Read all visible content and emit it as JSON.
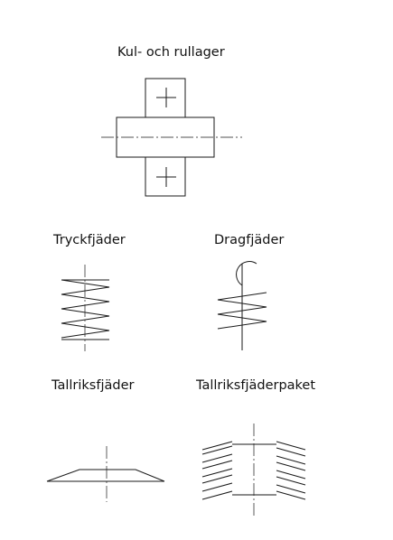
{
  "symbols": {
    "bearing": {
      "label": "Kul- och rullager"
    },
    "compression_spring": {
      "label": "Tryckfjäder"
    },
    "tension_spring": {
      "label": "Dragfjäder"
    },
    "disc_spring": {
      "label": "Tallriksfjäder"
    },
    "disc_spring_pack": {
      "label": "Tallriksfjäderpaket"
    }
  },
  "line_color": "#1a1a1a"
}
